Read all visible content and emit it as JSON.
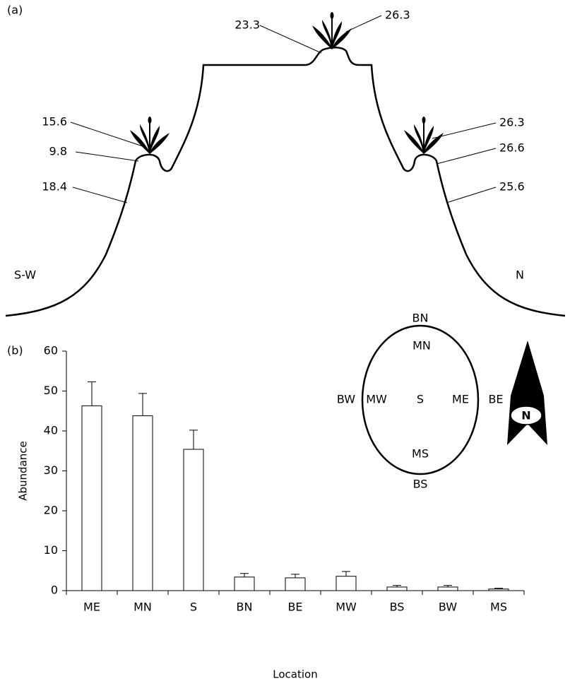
{
  "panel_a": {
    "label": "(a)",
    "labels": [
      {
        "text": "23.3"
      },
      {
        "text": "26.3"
      },
      {
        "text": "15.6"
      },
      {
        "text": "9.8"
      },
      {
        "text": "18.4"
      },
      {
        "text": "26.3"
      },
      {
        "text": "26.6"
      },
      {
        "text": "25.6"
      }
    ],
    "sides": [
      "S-W",
      "N"
    ]
  },
  "chart_data": {
    "type": "bar",
    "label": "(b)",
    "x_label": "Location",
    "y_label": "Abundance",
    "categories": [
      "ME",
      "MN",
      "S",
      "BN",
      "BE",
      "MW",
      "BS",
      "BW",
      "MS"
    ],
    "values": [
      46.3,
      43.8,
      35.4,
      3.4,
      3.2,
      3.6,
      0.9,
      0.9,
      0.4
    ],
    "errors": [
      6.0,
      5.6,
      4.8,
      0.9,
      0.9,
      1.2,
      0.4,
      0.4,
      0.2
    ],
    "color": "#ffffff",
    "ylim": [
      0,
      60
    ],
    "yticks": [
      0,
      10,
      20,
      30,
      40,
      50,
      60
    ],
    "inset": {
      "labels": [
        "BN",
        "MN",
        "BW",
        "MW",
        "S",
        "ME",
        "BE",
        "MS",
        "BS"
      ],
      "compass": "N"
    }
  }
}
